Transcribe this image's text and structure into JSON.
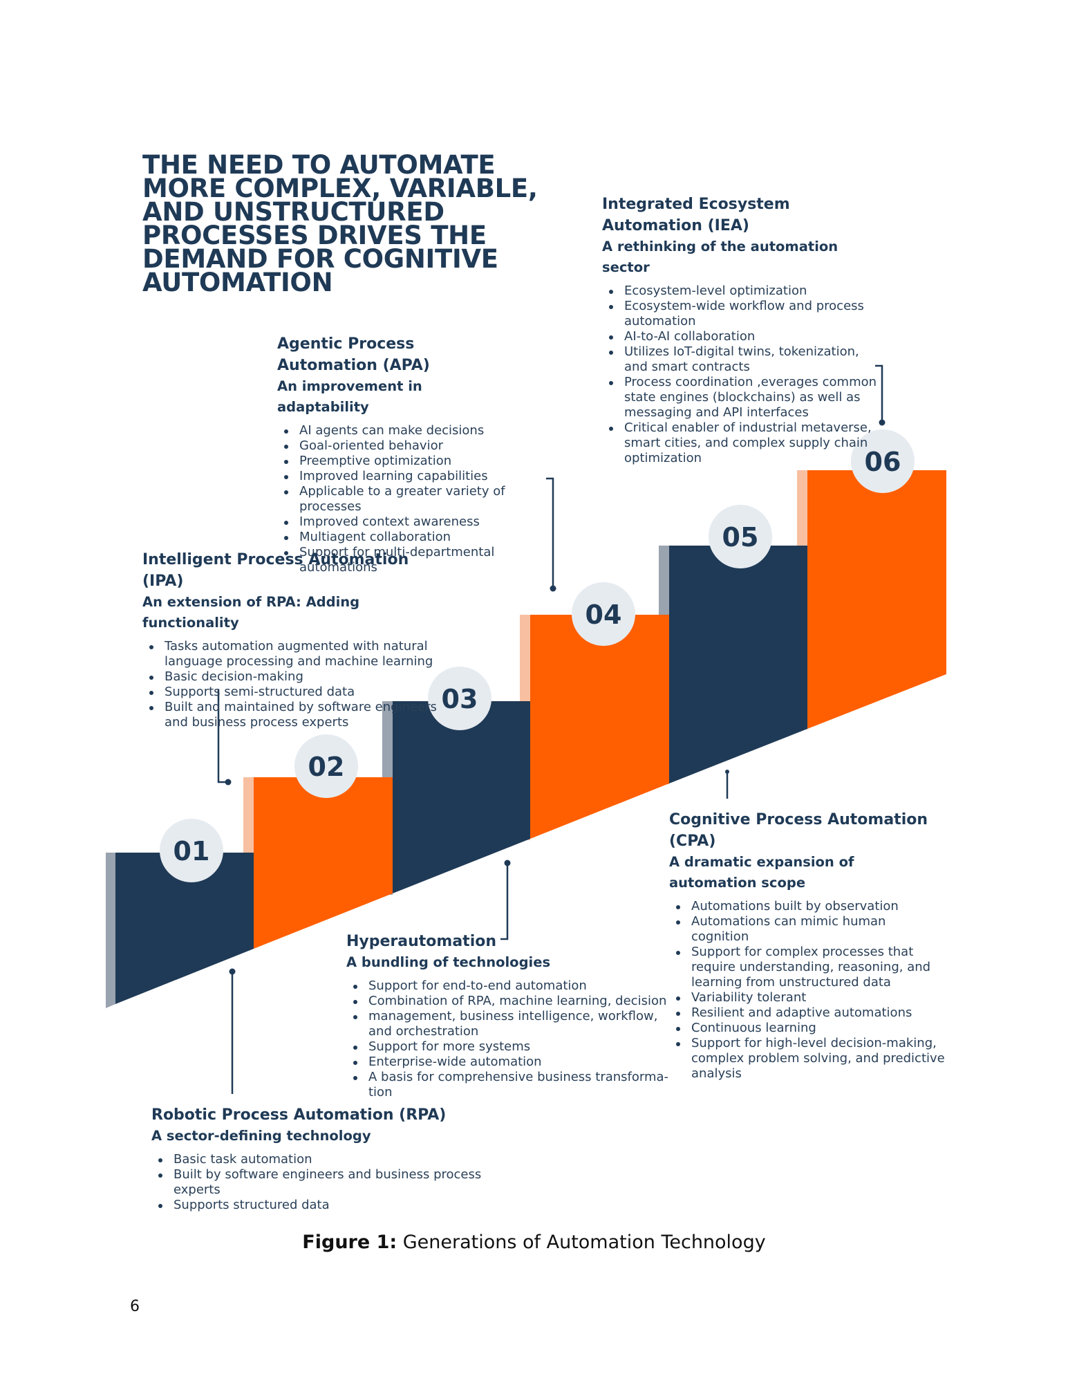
{
  "headline": "THE NEED TO AUTOMATE MORE COMPLEX, VARIABLE, AND UNSTRUCTURED PROCESSES DRIVES THE DEMAND FOR COGNITIVE AUTOMATION",
  "stages": [
    {
      "number": "01",
      "title": "Robotic Process Automation (RPA)",
      "subtitle": "A sector-defining technology",
      "bullets": [
        "Basic task automation",
        "Built by software engineers and business process experts",
        "Supports structured data"
      ],
      "color": "#1f3a56"
    },
    {
      "number": "02",
      "title": "Intelligent Process Automation (IPA)",
      "subtitle": "An extension of RPA: Adding functionality",
      "bullets": [
        "Tasks automation augmented with natural language processing and machine learning",
        "Basic decision-making",
        "Supports semi-structured data",
        "Built and maintained by software engineers and business process experts"
      ],
      "color": "#ff5f00"
    },
    {
      "number": "03",
      "title": "Hyperautomation",
      "subtitle": "A bundling of technologies",
      "bullets": [
        "Support for end-to-end automation",
        "Combination of RPA, machine learning, decision",
        "management, business intelligence, workflow, and orchestration",
        "Support for more systems",
        "Enterprise-wide automation",
        "A basis for comprehensive business transforma-tion"
      ],
      "color": "#1f3a56"
    },
    {
      "number": "04",
      "title": "Agentic Process Automation (APA)",
      "subtitle": "An improvement in adaptability",
      "bullets": [
        "AI agents can make decisions",
        "Goal-oriented behavior",
        "Preemptive optimization",
        "Improved learning capabilities",
        "Applicable to a greater variety of processes",
        "Improved context awareness",
        "Multiagent collaboration",
        "Support for multi-departmental automations"
      ],
      "color": "#ff5f00"
    },
    {
      "number": "05",
      "title": "Cognitive Process Automation (CPA)",
      "subtitle": "A dramatic expansion of automation scope",
      "bullets": [
        "Automations built by observation",
        "Automations can mimic human cognition",
        "Support for complex processes that require understanding, reasoning, and learning from unstructured data",
        "Variability tolerant",
        "Resilient and adaptive automations",
        "Continuous learning",
        "Support for high-level decision-making, complex problem solving, and predictive analysis"
      ],
      "color": "#1f3a56"
    },
    {
      "number": "06",
      "title": "Integrated Ecosystem Automation (IEA)",
      "subtitle": "A rethinking of the automation sector",
      "bullets": [
        "Ecosystem-level optimization",
        "Ecosystem-wide workflow and process automation",
        "AI-to-AI collaboration",
        "Utilizes IoT-digital twins, tokenization, and smart contracts",
        "Process coordination ,everages common state engines (blockchains) as well as messaging and API interfaces",
        "Critical enabler of industrial metaverse, smart cities, and complex supply chain optimization"
      ],
      "color": "#ff5f00"
    }
  ],
  "colors": {
    "navy": "#1f3a56",
    "orange": "#ff5f00",
    "circle": "#e6ebf0"
  },
  "caption": {
    "label": "Figure 1:",
    "text": " Generations of Automation Technology"
  },
  "page_number": "6"
}
